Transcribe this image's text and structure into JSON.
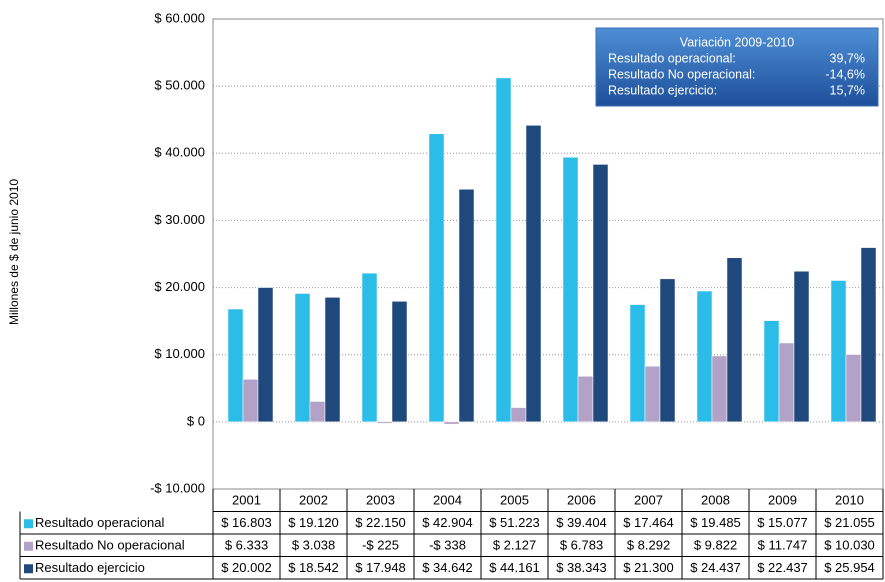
{
  "chart_data": {
    "type": "bar",
    "y_label": "Millones de $ de junio 2010",
    "categories": [
      "2001",
      "2002",
      "2003",
      "2004",
      "2005",
      "2006",
      "2007",
      "2008",
      "2009",
      "2010"
    ],
    "series": [
      {
        "name": "Resultado operacional",
        "color": "#2bbde8",
        "values": [
          16803,
          19120,
          22150,
          42904,
          51223,
          39404,
          17464,
          19485,
          15077,
          21055
        ],
        "value_labels": [
          "$ 16.803",
          "$ 19.120",
          "$ 22.150",
          "$ 42.904",
          "$ 51.223",
          "$ 39.404",
          "$ 17.464",
          "$ 19.485",
          "$ 15.077",
          "$ 21.055"
        ]
      },
      {
        "name": "Resultado No operacional",
        "color": "#b3a2c7",
        "values": [
          6333,
          3038,
          -225,
          -338,
          2127,
          6783,
          8292,
          9822,
          11747,
          10030
        ],
        "value_labels": [
          "$ 6.333",
          "$ 3.038",
          "-$ 225",
          "-$ 338",
          "$ 2.127",
          "$ 6.783",
          "$ 8.292",
          "$ 9.822",
          "$ 11.747",
          "$ 10.030"
        ]
      },
      {
        "name": "Resultado ejercicio",
        "color": "#1f497d",
        "values": [
          20002,
          18542,
          17948,
          34642,
          44161,
          38343,
          21300,
          24437,
          22437,
          25954
        ],
        "value_labels": [
          "$ 20.002",
          "$ 18.542",
          "$ 17.948",
          "$ 34.642",
          "$ 44.161",
          "$ 38.343",
          "$ 21.300",
          "$ 24.437",
          "$ 22.437",
          "$ 25.954"
        ]
      }
    ],
    "ylim": [
      -10000,
      60000
    ],
    "yticks": [
      {
        "value": -10000,
        "label": "-$ 10.000"
      },
      {
        "value": 0,
        "label": "$ 0"
      },
      {
        "value": 10000,
        "label": "$ 10.000"
      },
      {
        "value": 20000,
        "label": "$ 20.000"
      },
      {
        "value": 30000,
        "label": "$ 30.000"
      },
      {
        "value": 40000,
        "label": "$ 40.000"
      },
      {
        "value": 50000,
        "label": "$ 50.000"
      },
      {
        "value": 60000,
        "label": "$ 60.000"
      }
    ],
    "grid": true,
    "annotation": {
      "title": "Variación 2009-2010",
      "rows": [
        {
          "label": "Resultado operacional:",
          "value": "39,7%"
        },
        {
          "label": "Resultado No operacional:",
          "value": "-14,6%"
        },
        {
          "label": "Resultado ejercicio:",
          "value": "15,7%"
        }
      ]
    }
  }
}
